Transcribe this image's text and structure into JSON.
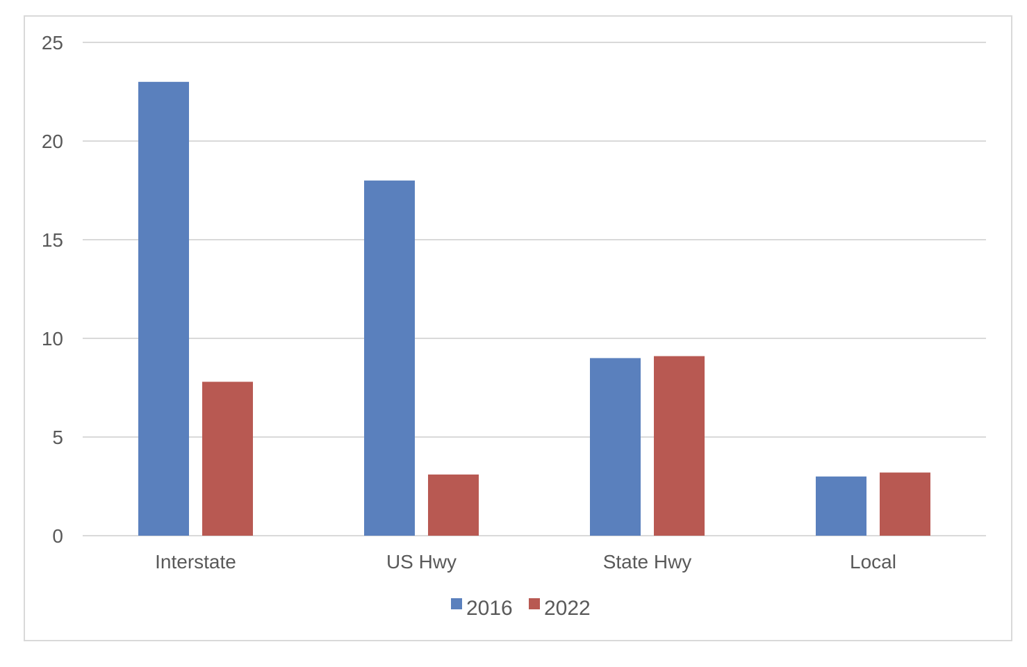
{
  "chart_data": {
    "type": "bar",
    "categories": [
      "Interstate",
      "US Hwy",
      "State Hwy",
      "Local"
    ],
    "series": [
      {
        "name": "2016",
        "values": [
          23,
          18,
          9,
          3
        ],
        "color": "#5a80bd"
      },
      {
        "name": "2022",
        "values": [
          7.8,
          3.1,
          9.1,
          3.2
        ],
        "color": "#b85952"
      }
    ],
    "title": "",
    "xlabel": "",
    "ylabel": "",
    "ylim": [
      0,
      25
    ],
    "yticks": [
      "0",
      "5",
      "10",
      "15",
      "20",
      "25"
    ],
    "grid": true,
    "legend_position": "bottom",
    "colors": {
      "grid": "#d9d9d9",
      "axis": "#d9d9d9",
      "text": "#595959",
      "border": "#d9d9d9"
    }
  }
}
